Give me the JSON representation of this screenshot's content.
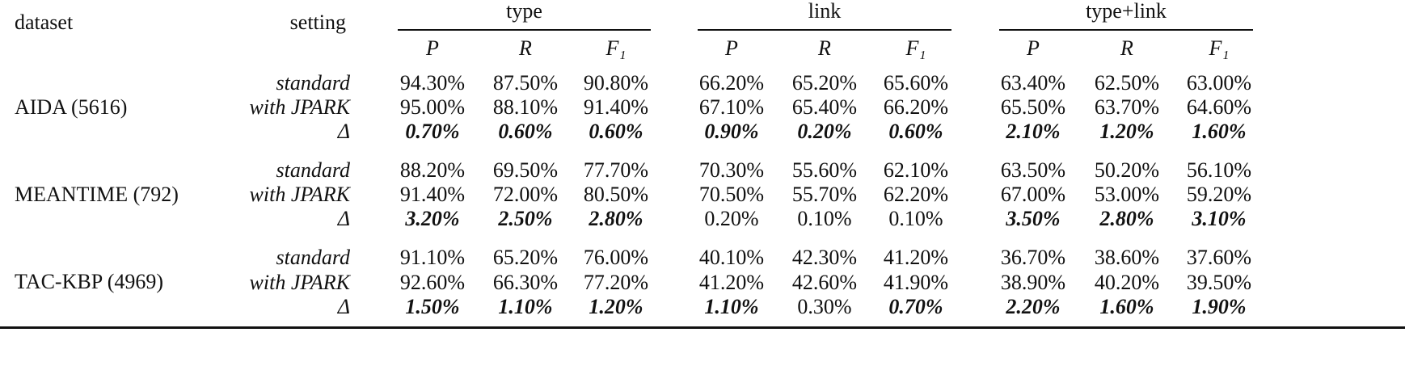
{
  "header": {
    "dataset": "dataset",
    "setting": "setting",
    "groups": [
      "type",
      "link",
      "type+link"
    ],
    "metrics": [
      "P",
      "R",
      "F₁"
    ]
  },
  "blocks": [
    {
      "dataset": "AIDA (5616)",
      "rows": [
        {
          "setting": "standard",
          "values": [
            "94.30%",
            "87.50%",
            "90.80%",
            "66.20%",
            "65.20%",
            "65.60%",
            "63.40%",
            "62.50%",
            "63.00%"
          ],
          "bold": [
            false,
            false,
            false,
            false,
            false,
            false,
            false,
            false,
            false
          ]
        },
        {
          "setting": "with JPARK",
          "values": [
            "95.00%",
            "88.10%",
            "91.40%",
            "67.10%",
            "65.40%",
            "66.20%",
            "65.50%",
            "63.70%",
            "64.60%"
          ],
          "bold": [
            false,
            false,
            false,
            false,
            false,
            false,
            false,
            false,
            false
          ]
        },
        {
          "setting": "Δ",
          "values": [
            "0.70%",
            "0.60%",
            "0.60%",
            "0.90%",
            "0.20%",
            "0.60%",
            "2.10%",
            "1.20%",
            "1.60%"
          ],
          "bold": [
            true,
            true,
            true,
            true,
            true,
            true,
            true,
            true,
            true
          ]
        }
      ]
    },
    {
      "dataset": "MEANTIME (792)",
      "rows": [
        {
          "setting": "standard",
          "values": [
            "88.20%",
            "69.50%",
            "77.70%",
            "70.30%",
            "55.60%",
            "62.10%",
            "63.50%",
            "50.20%",
            "56.10%"
          ],
          "bold": [
            false,
            false,
            false,
            false,
            false,
            false,
            false,
            false,
            false
          ]
        },
        {
          "setting": "with JPARK",
          "values": [
            "91.40%",
            "72.00%",
            "80.50%",
            "70.50%",
            "55.70%",
            "62.20%",
            "67.00%",
            "53.00%",
            "59.20%"
          ],
          "bold": [
            false,
            false,
            false,
            false,
            false,
            false,
            false,
            false,
            false
          ]
        },
        {
          "setting": "Δ",
          "values": [
            "3.20%",
            "2.50%",
            "2.80%",
            "0.20%",
            "0.10%",
            "0.10%",
            "3.50%",
            "2.80%",
            "3.10%"
          ],
          "bold": [
            true,
            true,
            true,
            false,
            false,
            false,
            true,
            true,
            true
          ]
        }
      ]
    },
    {
      "dataset": "TAC-KBP (4969)",
      "rows": [
        {
          "setting": "standard",
          "values": [
            "91.10%",
            "65.20%",
            "76.00%",
            "40.10%",
            "42.30%",
            "41.20%",
            "36.70%",
            "38.60%",
            "37.60%"
          ],
          "bold": [
            false,
            false,
            false,
            false,
            false,
            false,
            false,
            false,
            false
          ]
        },
        {
          "setting": "with JPARK",
          "values": [
            "92.60%",
            "66.30%",
            "77.20%",
            "41.20%",
            "42.60%",
            "41.90%",
            "38.90%",
            "40.20%",
            "39.50%"
          ],
          "bold": [
            false,
            false,
            false,
            false,
            false,
            false,
            false,
            false,
            false
          ]
        },
        {
          "setting": "Δ",
          "values": [
            "1.50%",
            "1.10%",
            "1.20%",
            "1.10%",
            "0.30%",
            "0.70%",
            "2.20%",
            "1.60%",
            "1.90%"
          ],
          "bold": [
            true,
            true,
            true,
            true,
            false,
            true,
            true,
            true,
            true
          ]
        }
      ]
    }
  ]
}
